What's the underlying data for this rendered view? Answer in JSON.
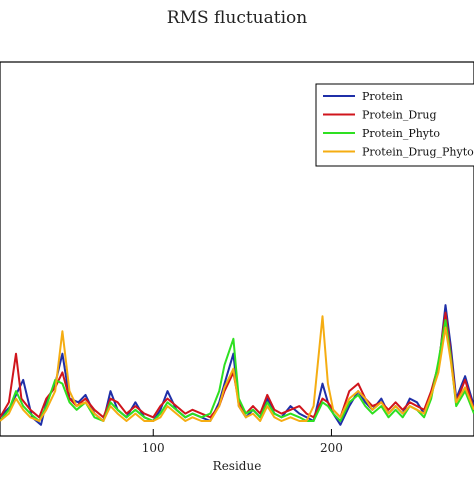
{
  "chart_data": {
    "type": "line",
    "title": "RMS fluctuation",
    "xlabel": "Residue",
    "ylabel": "",
    "xlim": [
      14,
      280
    ],
    "ylim": [
      0,
      1.0
    ],
    "x_ticks": [
      100,
      200
    ],
    "grid": false,
    "legend_position": "top-right",
    "series": [
      {
        "name": "Protein",
        "color": "#1f2fa8",
        "points": [
          [
            14,
            0.05
          ],
          [
            20,
            0.08
          ],
          [
            27,
            0.15
          ],
          [
            32,
            0.05
          ],
          [
            37,
            0.03
          ],
          [
            40,
            0.09
          ],
          [
            45,
            0.14
          ],
          [
            49,
            0.22
          ],
          [
            53,
            0.1
          ],
          [
            58,
            0.09
          ],
          [
            62,
            0.11
          ],
          [
            67,
            0.06
          ],
          [
            72,
            0.04
          ],
          [
            76,
            0.12
          ],
          [
            80,
            0.07
          ],
          [
            85,
            0.05
          ],
          [
            90,
            0.09
          ],
          [
            95,
            0.05
          ],
          [
            100,
            0.04
          ],
          [
            104,
            0.07
          ],
          [
            108,
            0.12
          ],
          [
            113,
            0.07
          ],
          [
            118,
            0.05
          ],
          [
            122,
            0.06
          ],
          [
            127,
            0.05
          ],
          [
            132,
            0.04
          ],
          [
            137,
            0.09
          ],
          [
            140,
            0.14
          ],
          [
            145,
            0.22
          ],
          [
            148,
            0.08
          ],
          [
            152,
            0.05
          ],
          [
            156,
            0.07
          ],
          [
            160,
            0.05
          ],
          [
            164,
            0.1
          ],
          [
            168,
            0.06
          ],
          [
            172,
            0.05
          ],
          [
            177,
            0.08
          ],
          [
            182,
            0.06
          ],
          [
            186,
            0.05
          ],
          [
            190,
            0.04
          ],
          [
            195,
            0.14
          ],
          [
            198,
            0.09
          ],
          [
            201,
            0.06
          ],
          [
            205,
            0.03
          ],
          [
            210,
            0.08
          ],
          [
            215,
            0.12
          ],
          [
            219,
            0.09
          ],
          [
            223,
            0.07
          ],
          [
            228,
            0.1
          ],
          [
            232,
            0.06
          ],
          [
            236,
            0.08
          ],
          [
            240,
            0.06
          ],
          [
            244,
            0.1
          ],
          [
            248,
            0.09
          ],
          [
            252,
            0.06
          ],
          [
            256,
            0.11
          ],
          [
            260,
            0.18
          ],
          [
            264,
            0.35
          ],
          [
            267,
            0.24
          ],
          [
            270,
            0.1
          ],
          [
            275,
            0.16
          ],
          [
            280,
            0.08
          ]
        ]
      },
      {
        "name": "Protein_Drug",
        "color": "#d0151c",
        "points": [
          [
            14,
            0.05
          ],
          [
            19,
            0.09
          ],
          [
            23,
            0.22
          ],
          [
            26,
            0.1
          ],
          [
            31,
            0.07
          ],
          [
            36,
            0.05
          ],
          [
            40,
            0.1
          ],
          [
            45,
            0.13
          ],
          [
            49,
            0.17
          ],
          [
            53,
            0.1
          ],
          [
            57,
            0.08
          ],
          [
            62,
            0.1
          ],
          [
            67,
            0.07
          ],
          [
            72,
            0.05
          ],
          [
            76,
            0.1
          ],
          [
            80,
            0.09
          ],
          [
            85,
            0.06
          ],
          [
            90,
            0.08
          ],
          [
            95,
            0.06
          ],
          [
            100,
            0.05
          ],
          [
            104,
            0.08
          ],
          [
            108,
            0.1
          ],
          [
            113,
            0.08
          ],
          [
            118,
            0.06
          ],
          [
            122,
            0.07
          ],
          [
            127,
            0.06
          ],
          [
            132,
            0.05
          ],
          [
            137,
            0.08
          ],
          [
            140,
            0.12
          ],
          [
            145,
            0.17
          ],
          [
            148,
            0.09
          ],
          [
            152,
            0.06
          ],
          [
            156,
            0.08
          ],
          [
            160,
            0.06
          ],
          [
            164,
            0.11
          ],
          [
            168,
            0.07
          ],
          [
            172,
            0.06
          ],
          [
            177,
            0.07
          ],
          [
            182,
            0.08
          ],
          [
            186,
            0.06
          ],
          [
            190,
            0.05
          ],
          [
            195,
            0.1
          ],
          [
            198,
            0.09
          ],
          [
            201,
            0.07
          ],
          [
            205,
            0.05
          ],
          [
            210,
            0.12
          ],
          [
            215,
            0.14
          ],
          [
            219,
            0.1
          ],
          [
            223,
            0.08
          ],
          [
            228,
            0.09
          ],
          [
            232,
            0.07
          ],
          [
            236,
            0.09
          ],
          [
            240,
            0.07
          ],
          [
            244,
            0.09
          ],
          [
            248,
            0.08
          ],
          [
            252,
            0.07
          ],
          [
            256,
            0.12
          ],
          [
            260,
            0.19
          ],
          [
            264,
            0.33
          ],
          [
            267,
            0.22
          ],
          [
            270,
            0.09
          ],
          [
            275,
            0.15
          ],
          [
            280,
            0.07
          ]
        ]
      },
      {
        "name": "Protein_Phyto",
        "color": "#2ee021",
        "points": [
          [
            14,
            0.04
          ],
          [
            19,
            0.07
          ],
          [
            23,
            0.12
          ],
          [
            27,
            0.08
          ],
          [
            31,
            0.06
          ],
          [
            36,
            0.04
          ],
          [
            40,
            0.08
          ],
          [
            45,
            0.15
          ],
          [
            49,
            0.14
          ],
          [
            53,
            0.09
          ],
          [
            57,
            0.07
          ],
          [
            62,
            0.09
          ],
          [
            67,
            0.05
          ],
          [
            72,
            0.04
          ],
          [
            76,
            0.09
          ],
          [
            80,
            0.07
          ],
          [
            85,
            0.05
          ],
          [
            90,
            0.07
          ],
          [
            95,
            0.05
          ],
          [
            100,
            0.04
          ],
          [
            104,
            0.06
          ],
          [
            108,
            0.09
          ],
          [
            113,
            0.07
          ],
          [
            118,
            0.05
          ],
          [
            122,
            0.06
          ],
          [
            127,
            0.05
          ],
          [
            132,
            0.06
          ],
          [
            137,
            0.12
          ],
          [
            140,
            0.19
          ],
          [
            145,
            0.26
          ],
          [
            148,
            0.1
          ],
          [
            152,
            0.06
          ],
          [
            156,
            0.07
          ],
          [
            160,
            0.05
          ],
          [
            164,
            0.09
          ],
          [
            168,
            0.06
          ],
          [
            172,
            0.05
          ],
          [
            177,
            0.06
          ],
          [
            182,
            0.05
          ],
          [
            186,
            0.04
          ],
          [
            190,
            0.04
          ],
          [
            195,
            0.09
          ],
          [
            198,
            0.08
          ],
          [
            201,
            0.06
          ],
          [
            205,
            0.04
          ],
          [
            210,
            0.09
          ],
          [
            215,
            0.11
          ],
          [
            219,
            0.08
          ],
          [
            223,
            0.06
          ],
          [
            228,
            0.08
          ],
          [
            232,
            0.05
          ],
          [
            236,
            0.07
          ],
          [
            240,
            0.05
          ],
          [
            244,
            0.08
          ],
          [
            248,
            0.07
          ],
          [
            252,
            0.05
          ],
          [
            256,
            0.1
          ],
          [
            260,
            0.2
          ],
          [
            264,
            0.31
          ],
          [
            267,
            0.21
          ],
          [
            270,
            0.08
          ],
          [
            275,
            0.12
          ],
          [
            280,
            0.06
          ]
        ]
      },
      {
        "name": "Protein_Drug_Phyto",
        "color": "#f5ad12",
        "points": [
          [
            14,
            0.04
          ],
          [
            19,
            0.06
          ],
          [
            23,
            0.1
          ],
          [
            27,
            0.07
          ],
          [
            31,
            0.05
          ],
          [
            36,
            0.04
          ],
          [
            40,
            0.07
          ],
          [
            45,
            0.12
          ],
          [
            49,
            0.28
          ],
          [
            53,
            0.12
          ],
          [
            57,
            0.08
          ],
          [
            62,
            0.09
          ],
          [
            67,
            0.06
          ],
          [
            72,
            0.04
          ],
          [
            76,
            0.08
          ],
          [
            80,
            0.06
          ],
          [
            85,
            0.04
          ],
          [
            90,
            0.06
          ],
          [
            95,
            0.04
          ],
          [
            100,
            0.04
          ],
          [
            104,
            0.05
          ],
          [
            108,
            0.08
          ],
          [
            113,
            0.06
          ],
          [
            118,
            0.04
          ],
          [
            122,
            0.05
          ],
          [
            127,
            0.04
          ],
          [
            132,
            0.04
          ],
          [
            137,
            0.08
          ],
          [
            140,
            0.13
          ],
          [
            145,
            0.18
          ],
          [
            148,
            0.08
          ],
          [
            152,
            0.05
          ],
          [
            156,
            0.06
          ],
          [
            160,
            0.04
          ],
          [
            164,
            0.08
          ],
          [
            168,
            0.05
          ],
          [
            172,
            0.04
          ],
          [
            177,
            0.05
          ],
          [
            182,
            0.04
          ],
          [
            186,
            0.04
          ],
          [
            190,
            0.08
          ],
          [
            195,
            0.32
          ],
          [
            198,
            0.14
          ],
          [
            201,
            0.07
          ],
          [
            205,
            0.05
          ],
          [
            210,
            0.1
          ],
          [
            215,
            0.12
          ],
          [
            219,
            0.1
          ],
          [
            223,
            0.07
          ],
          [
            228,
            0.09
          ],
          [
            232,
            0.06
          ],
          [
            236,
            0.08
          ],
          [
            240,
            0.06
          ],
          [
            244,
            0.08
          ],
          [
            248,
            0.07
          ],
          [
            252,
            0.06
          ],
          [
            256,
            0.11
          ],
          [
            260,
            0.17
          ],
          [
            264,
            0.29
          ],
          [
            267,
            0.2
          ],
          [
            270,
            0.09
          ],
          [
            275,
            0.13
          ],
          [
            280,
            0.07
          ]
        ]
      }
    ]
  }
}
